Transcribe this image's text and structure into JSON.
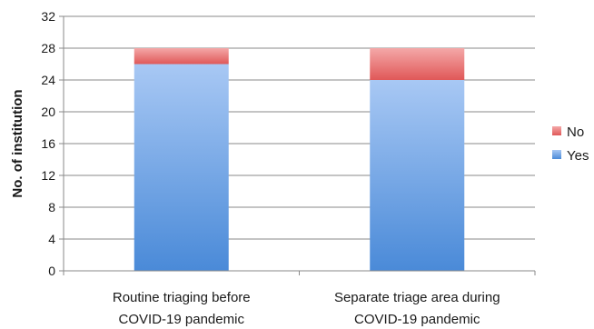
{
  "chart_data": {
    "type": "bar",
    "stacked": true,
    "categories": [
      [
        "Routine triaging before",
        "COVID-19 pandemic"
      ],
      [
        "Separate triage area during",
        "COVID-19 pandemic"
      ]
    ],
    "series": [
      {
        "name": "Yes",
        "values": [
          26,
          24
        ],
        "color_top": "#a8c8f4",
        "color_bottom": "#4a8ad8"
      },
      {
        "name": "No",
        "values": [
          2,
          4
        ],
        "color_top": "#f4a8a8",
        "color_bottom": "#e05858"
      }
    ],
    "title": "",
    "xlabel": "",
    "ylabel": "No. of institution",
    "ylim": [
      0,
      32
    ],
    "yticks": [
      0,
      4,
      8,
      12,
      16,
      20,
      24,
      28,
      32
    ],
    "grid": true,
    "legend_position": "right",
    "legend_order": [
      "No",
      "Yes"
    ]
  }
}
